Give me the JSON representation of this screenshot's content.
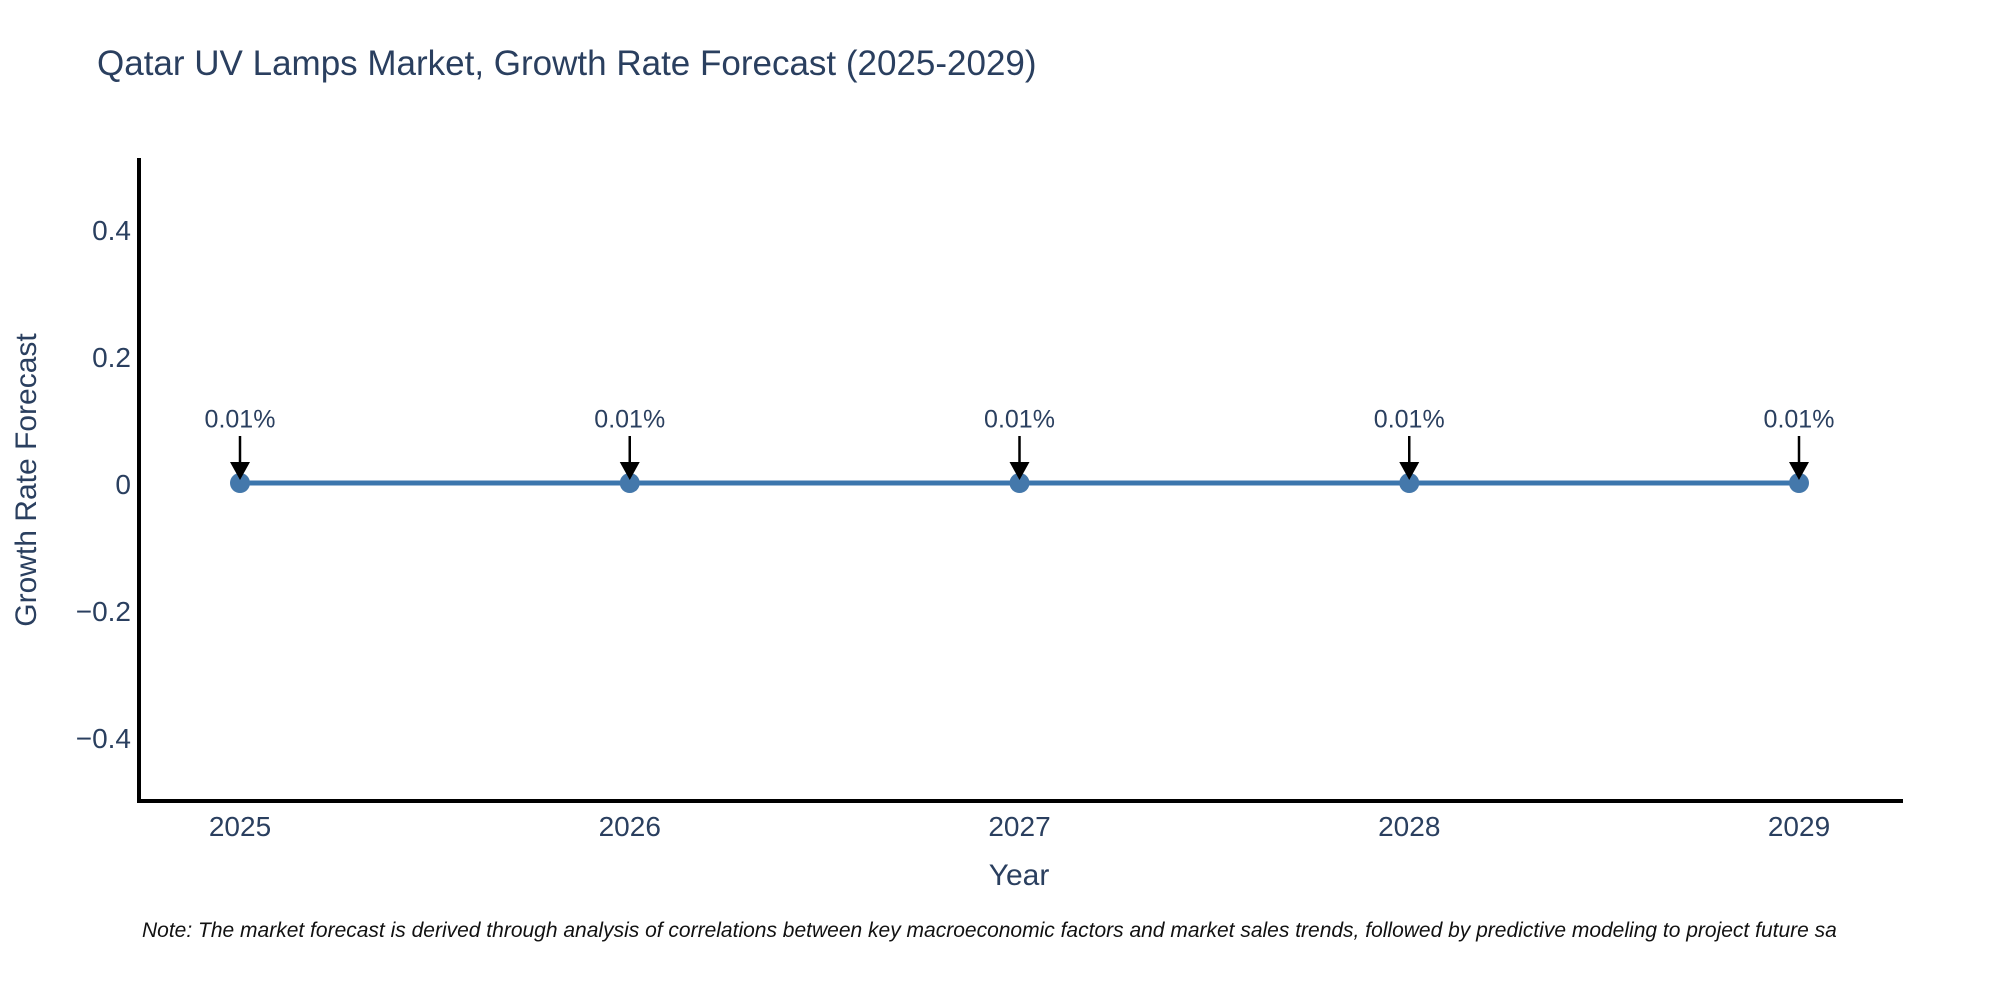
{
  "title": "Qatar UV Lamps Market, Growth Rate Forecast (2025-2029)",
  "note": "Note: The market forecast is derived through analysis of correlations between key macroeconomic factors and market sales trends, followed by predictive modeling to project future sa",
  "chart_data": {
    "type": "line",
    "title": "Qatar UV Lamps Market, Growth Rate Forecast (2025-2029)",
    "xlabel": "Year",
    "ylabel": "Growth Rate Forecast",
    "x": [
      2025,
      2026,
      2027,
      2028,
      2029
    ],
    "series": [
      {
        "name": "Growth Rate Forecast",
        "values": [
          0.0001,
          0.0001,
          0.0001,
          0.0001,
          0.0001
        ]
      }
    ],
    "point_labels": [
      "0.01%",
      "0.01%",
      "0.01%",
      "0.01%",
      "0.01%"
    ],
    "xticklabels": [
      "2025",
      "2026",
      "2027",
      "2028",
      "2029"
    ],
    "yticks": [
      0.4,
      0.2,
      0,
      -0.2,
      -0.4
    ],
    "yticklabels": [
      "0.4",
      "0.2",
      "0",
      "−0.2",
      "−0.4"
    ],
    "ylim": [
      -0.5,
      0.52
    ],
    "grid": false,
    "legend_position": "none",
    "annotation_arrows": "black, pointing down onto each marker",
    "colors": {
      "line": "#3c76ad",
      "marker": "#4478ab",
      "axis_spine": "#000000",
      "text": "#2a3f5f",
      "note_text": "#111111",
      "background": "#ffffff"
    }
  }
}
